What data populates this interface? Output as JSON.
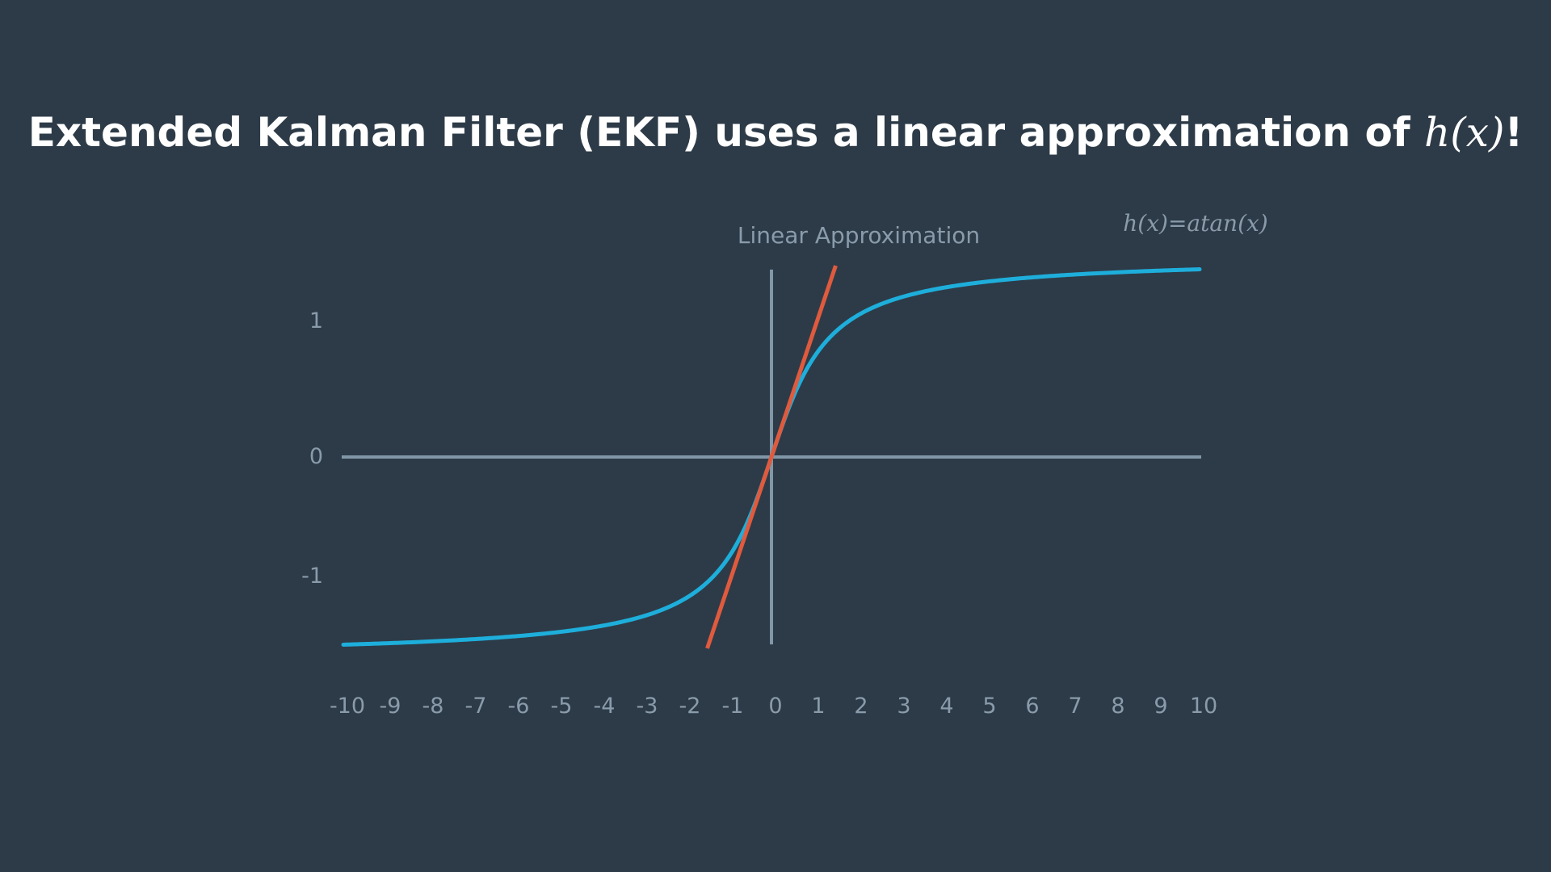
{
  "title": {
    "prefix": "Extended Kalman Filter (EKF) uses a linear approximation of ",
    "math": "h(x)",
    "suffix": "!"
  },
  "chart_data": {
    "type": "line",
    "x_tick_labels": [
      "-10",
      "-9",
      "-8",
      "-7",
      "-6",
      "-5",
      "-4",
      "-3",
      "-2",
      "-1",
      "0",
      "1",
      "2",
      "3",
      "4",
      "5",
      "6",
      "7",
      "8",
      "9",
      "10"
    ],
    "y_tick_labels": [
      "1",
      "0",
      "-1"
    ],
    "xlim": [
      -10,
      10
    ],
    "ylim": [
      -1.45,
      1.45
    ],
    "annotations": {
      "linear_label": "Linear Approximation",
      "function_label": "h(x)=atan(x)"
    },
    "series": [
      {
        "function": "atan",
        "x_range": [
          -10,
          10
        ],
        "color": "#1eaedb"
      },
      {
        "function": "linear",
        "slope": 1,
        "intercept": 0,
        "x_range": [
          -1.5,
          1.5
        ],
        "color": "#e05a3e"
      }
    ],
    "axis_color": "#8197a8"
  }
}
